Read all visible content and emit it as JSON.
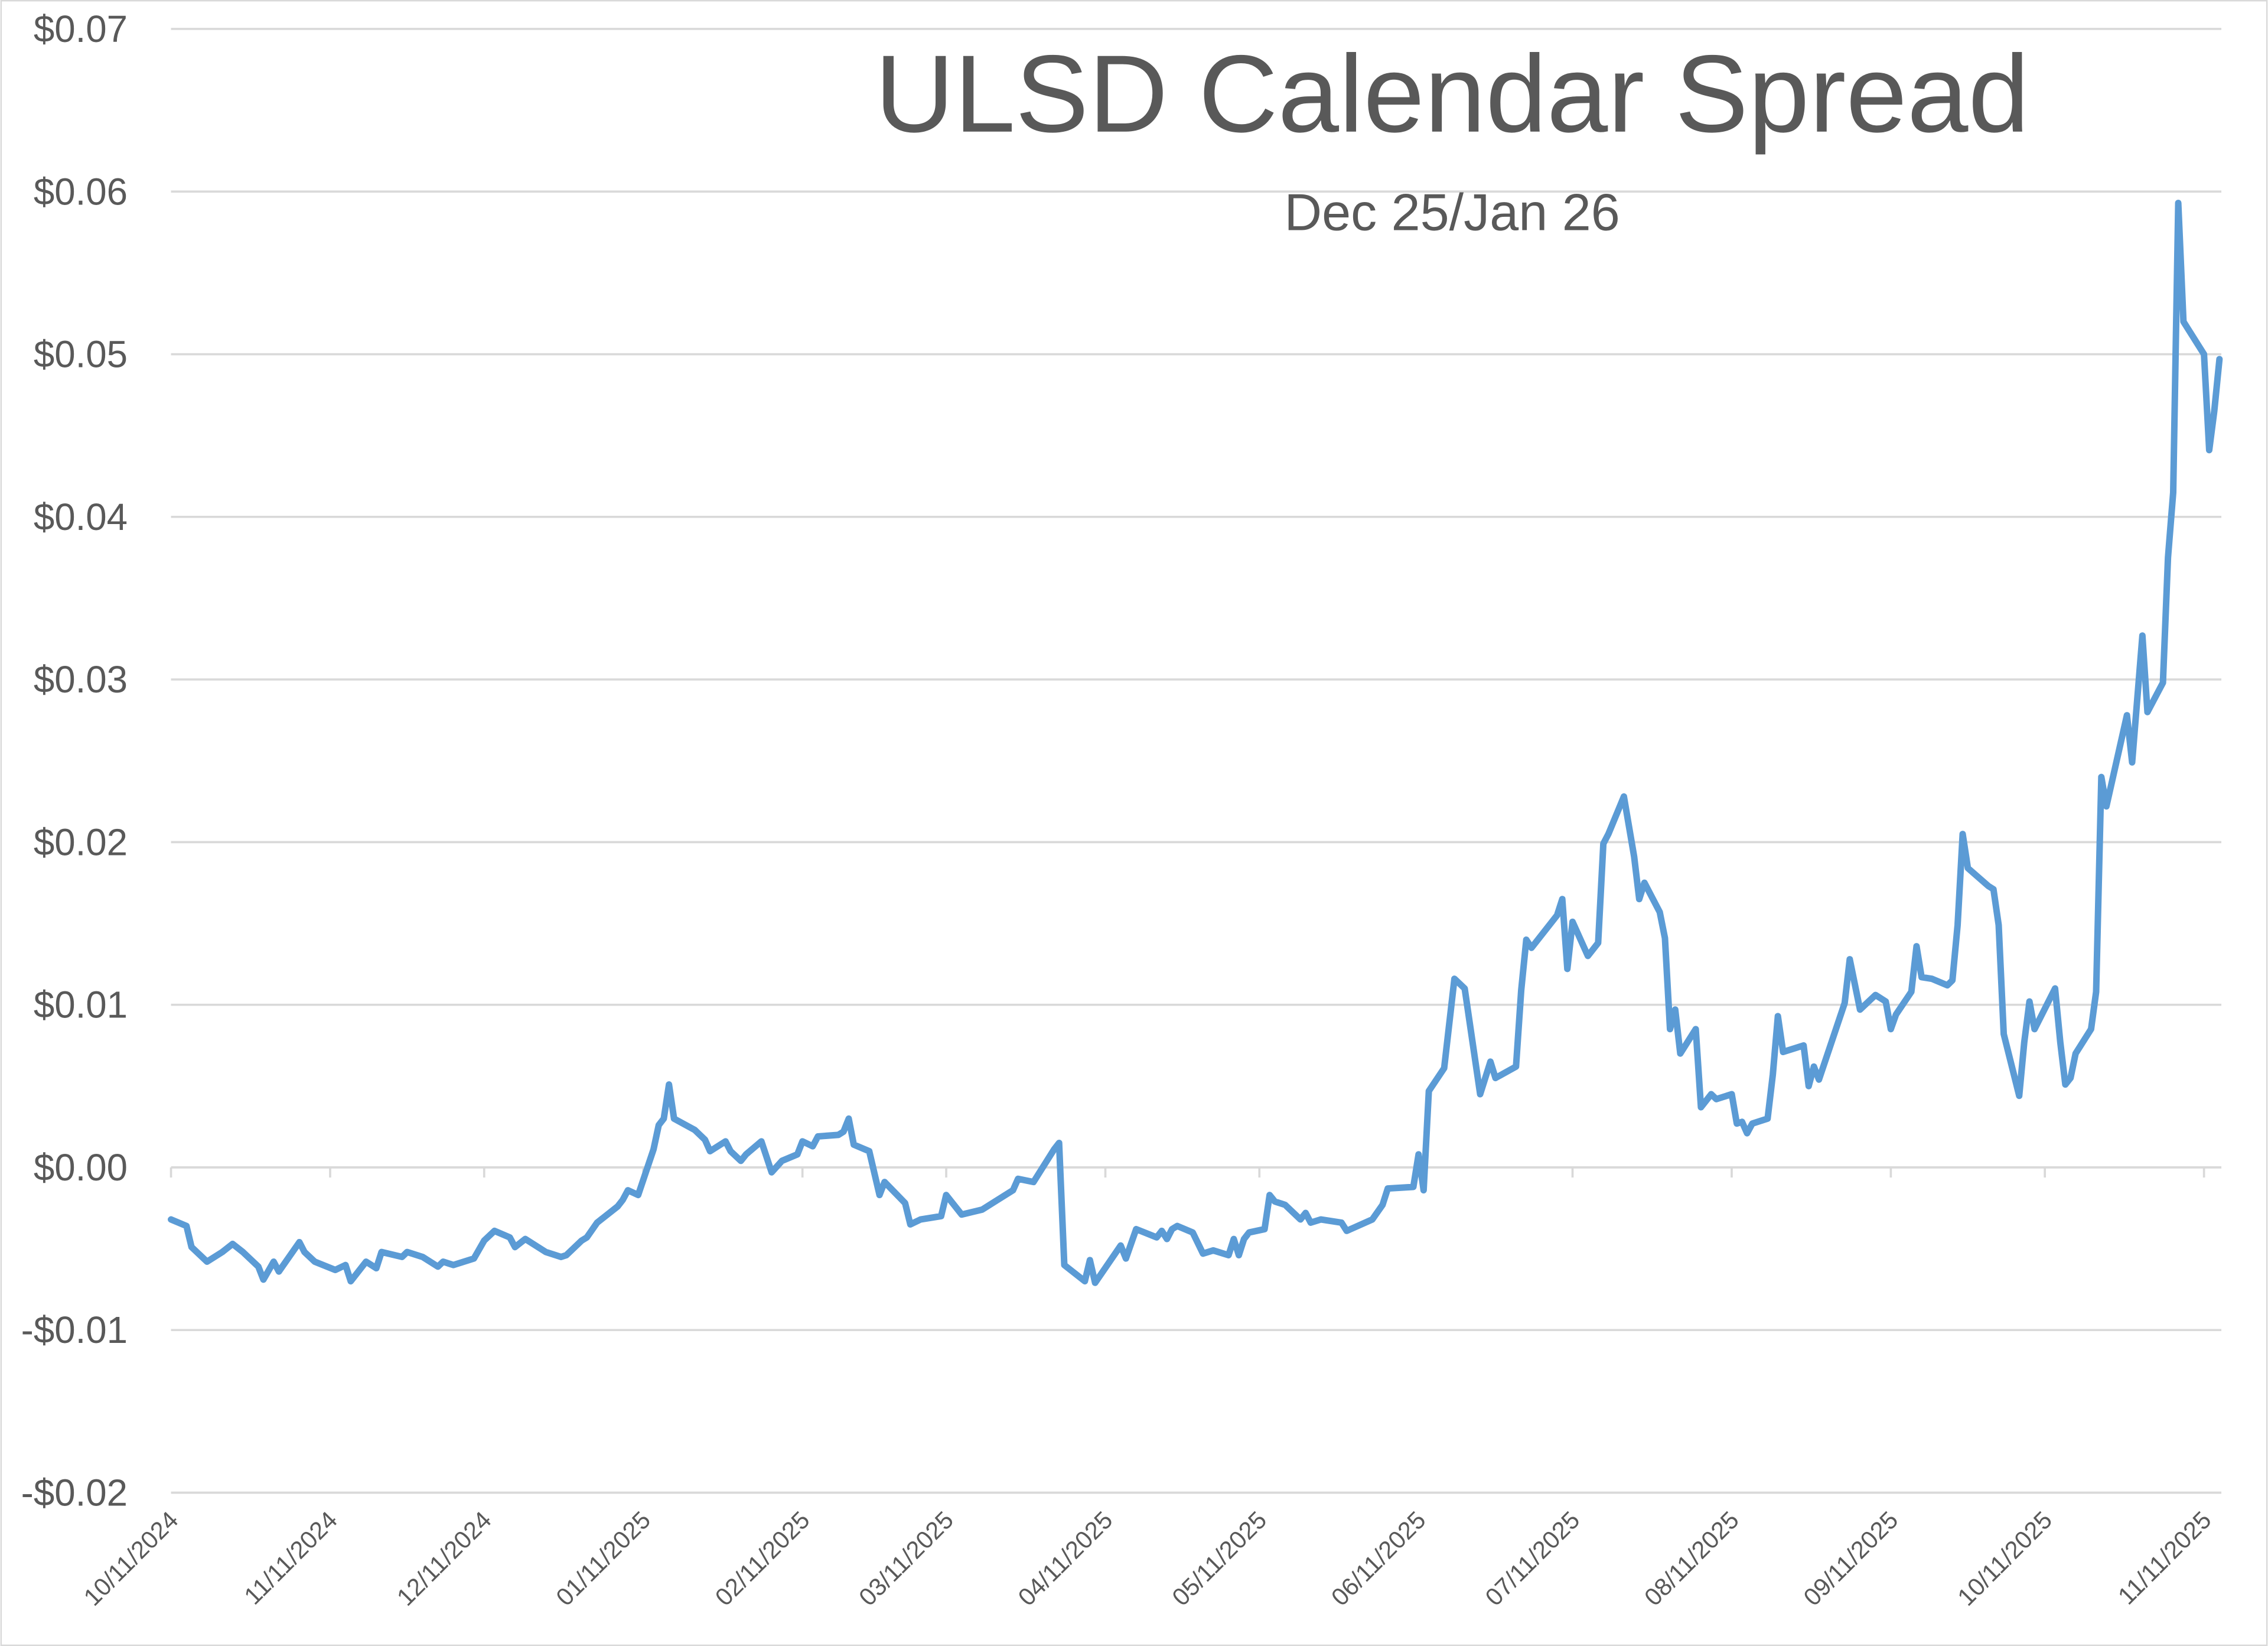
{
  "chart_data": {
    "type": "line",
    "title": "ULSD Calendar Spread",
    "subtitle": "Dec 25/Jan 26",
    "xlabel": "",
    "ylabel": "",
    "ylim": [
      -0.02,
      0.07
    ],
    "xlim": [
      "2024-10-11",
      "2025-11-11"
    ],
    "y_ticks": [
      -0.02,
      -0.01,
      0.0,
      0.01,
      0.02,
      0.03,
      0.04,
      0.05,
      0.06,
      0.07
    ],
    "y_tick_labels": [
      "-$0.02",
      "-$0.01",
      "$0.00",
      "$0.01",
      "$0.02",
      "$0.03",
      "$0.04",
      "$0.05",
      "$0.06",
      "$0.07"
    ],
    "x_ticks": [
      "2024-10-11",
      "2024-11-11",
      "2024-12-11",
      "2025-01-11",
      "2025-02-11",
      "2025-03-11",
      "2025-04-11",
      "2025-05-11",
      "2025-06-11",
      "2025-07-11",
      "2025-08-11",
      "2025-09-11",
      "2025-10-11",
      "2025-11-11"
    ],
    "x_tick_labels": [
      "10/11/2024",
      "11/11/2024",
      "12/11/2024",
      "01/11/2025",
      "02/11/2025",
      "03/11/2025",
      "04/11/2025",
      "05/11/2025",
      "06/11/2025",
      "07/11/2025",
      "08/11/2025",
      "09/11/2025",
      "10/11/2025",
      "11/11/2025"
    ],
    "grid": true,
    "legend": "none",
    "line_color": "#5b9bd5",
    "series": [
      {
        "x": [
          "2024-10-11",
          "2024-10-14",
          "2024-10-15",
          "2024-10-18",
          "2024-10-21",
          "2024-10-23",
          "2024-10-25",
          "2024-10-28",
          "2024-10-29",
          "2024-10-31",
          "2024-11-01",
          "2024-11-05",
          "2024-11-06",
          "2024-11-08",
          "2024-11-12",
          "2024-11-14",
          "2024-11-15",
          "2024-11-18",
          "2024-11-20",
          "2024-11-21",
          "2024-11-25",
          "2024-11-26",
          "2024-11-29",
          "2024-12-02",
          "2024-12-03",
          "2024-12-05",
          "2024-12-09",
          "2024-12-11",
          "2024-12-13",
          "2024-12-16",
          "2024-12-17",
          "2024-12-19",
          "2024-12-23",
          "2024-12-26",
          "2024-12-27",
          "2024-12-30",
          "2024-12-31",
          "2025-01-02",
          "2025-01-06",
          "2025-01-07",
          "2025-01-08",
          "2025-01-10",
          "2025-01-13",
          "2025-01-14",
          "2025-01-15",
          "2025-01-16",
          "2025-01-17",
          "2025-01-21",
          "2025-01-23",
          "2025-01-24",
          "2025-01-27",
          "2025-01-28",
          "2025-01-30",
          "2025-01-31",
          "2025-02-03",
          "2025-02-05",
          "2025-02-07",
          "2025-02-10",
          "2025-02-11",
          "2025-02-13",
          "2025-02-14",
          "2025-02-18",
          "2025-02-19",
          "2025-02-20",
          "2025-02-21",
          "2025-02-24",
          "2025-02-26",
          "2025-02-27",
          "2025-03-03",
          "2025-03-04",
          "2025-03-06",
          "2025-03-10",
          "2025-03-11",
          "2025-03-14",
          "2025-03-18",
          "2025-03-21",
          "2025-03-24",
          "2025-03-25",
          "2025-03-28",
          "2025-04-01",
          "2025-04-02",
          "2025-04-03",
          "2025-04-07",
          "2025-04-08",
          "2025-04-09",
          "2025-04-14",
          "2025-04-15",
          "2025-04-17",
          "2025-04-21",
          "2025-04-22",
          "2025-04-23",
          "2025-04-24",
          "2025-04-25",
          "2025-04-28",
          "2025-04-30",
          "2025-05-02",
          "2025-05-05",
          "2025-05-06",
          "2025-05-07",
          "2025-05-08",
          "2025-05-09",
          "2025-05-12",
          "2025-05-13",
          "2025-05-14",
          "2025-05-16",
          "2025-05-19",
          "2025-05-20",
          "2025-05-21",
          "2025-05-23",
          "2025-05-27",
          "2025-05-28",
          "2025-06-02",
          "2025-06-04",
          "2025-06-05",
          "2025-06-10",
          "2025-06-11",
          "2025-06-12",
          "2025-06-13",
          "2025-06-16",
          "2025-06-18",
          "2025-06-20",
          "2025-06-23",
          "2025-06-25",
          "2025-06-26",
          "2025-06-30",
          "2025-07-01",
          "2025-07-02",
          "2025-07-03",
          "2025-07-08",
          "2025-07-09",
          "2025-07-10",
          "2025-07-11",
          "2025-07-14",
          "2025-07-16",
          "2025-07-17",
          "2025-07-18",
          "2025-07-21",
          "2025-07-23",
          "2025-07-24",
          "2025-07-25",
          "2025-07-28",
          "2025-07-29",
          "2025-07-30",
          "2025-07-31",
          "2025-08-01",
          "2025-08-04",
          "2025-08-05",
          "2025-08-07",
          "2025-08-08",
          "2025-08-11",
          "2025-08-12",
          "2025-08-13",
          "2025-08-14",
          "2025-08-15",
          "2025-08-18",
          "2025-08-19",
          "2025-08-20",
          "2025-08-21",
          "2025-08-25",
          "2025-08-26",
          "2025-08-27",
          "2025-08-28",
          "2025-09-02",
          "2025-09-03",
          "2025-09-05",
          "2025-09-08",
          "2025-09-10",
          "2025-09-11",
          "2025-09-12",
          "2025-09-15",
          "2025-09-16",
          "2025-09-17",
          "2025-09-19",
          "2025-09-22",
          "2025-09-23",
          "2025-09-24",
          "2025-09-25",
          "2025-09-26",
          "2025-09-30",
          "2025-10-01",
          "2025-10-02",
          "2025-10-03",
          "2025-10-06",
          "2025-10-07",
          "2025-10-08",
          "2025-10-09",
          "2025-10-13",
          "2025-10-14",
          "2025-10-15",
          "2025-10-16",
          "2025-10-17",
          "2025-10-20",
          "2025-10-21",
          "2025-10-22",
          "2025-10-23",
          "2025-10-27",
          "2025-10-28",
          "2025-10-30",
          "2025-10-31",
          "2025-11-03",
          "2025-11-04",
          "2025-11-05",
          "2025-11-06",
          "2025-11-07",
          "2025-11-11",
          "2025-11-12",
          "2025-11-13",
          "2025-11-14"
        ],
        "y": [
          -0.0032,
          -0.0036,
          -0.0049,
          -0.0058,
          -0.0052,
          -0.0047,
          -0.0052,
          -0.0061,
          -0.0069,
          -0.0058,
          -0.0064,
          -0.0046,
          -0.0052,
          -0.0058,
          -0.0063,
          -0.006,
          -0.007,
          -0.0058,
          -0.0062,
          -0.0052,
          -0.0055,
          -0.0052,
          -0.0055,
          -0.0061,
          -0.0058,
          -0.006,
          -0.0056,
          -0.0045,
          -0.0039,
          -0.0043,
          -0.0049,
          -0.0044,
          -0.0052,
          -0.0055,
          -0.0054,
          -0.0045,
          -0.0043,
          -0.0034,
          -0.0024,
          -0.002,
          -0.0014,
          -0.0017,
          0.0011,
          0.0026,
          0.003,
          0.0051,
          0.003,
          0.0023,
          0.0017,
          0.001,
          0.0016,
          0.001,
          0.0004,
          0.0008,
          0.0016,
          -0.0003,
          0.0004,
          0.0008,
          0.0016,
          0.0013,
          0.0019,
          0.002,
          0.0022,
          0.003,
          0.0014,
          0.001,
          -0.0017,
          -0.0009,
          -0.0022,
          -0.0035,
          -0.0032,
          -0.003,
          -0.0017,
          -0.0029,
          -0.0026,
          -0.002,
          -0.0014,
          -0.0007,
          -0.0009,
          0.0011,
          0.0015,
          -0.006,
          -0.007,
          -0.0057,
          -0.0071,
          -0.0048,
          -0.0056,
          -0.0038,
          -0.0043,
          -0.0039,
          -0.0044,
          -0.0038,
          -0.0036,
          -0.004,
          -0.0053,
          -0.0051,
          -0.0054,
          -0.0044,
          -0.0054,
          -0.0044,
          -0.004,
          -0.0038,
          -0.0017,
          -0.0021,
          -0.0023,
          -0.0032,
          -0.0028,
          -0.0034,
          -0.0032,
          -0.0034,
          -0.0039,
          -0.0032,
          -0.0023,
          -0.0013,
          -0.0012,
          0.0008,
          -0.0014,
          0.0047,
          0.0061,
          0.0116,
          0.011,
          0.0045,
          0.0065,
          0.0055,
          0.0062,
          0.0109,
          0.014,
          0.0135,
          0.0155,
          0.0165,
          0.0122,
          0.0151,
          0.013,
          0.0138,
          0.0199,
          0.0205,
          0.0228,
          0.0191,
          0.0165,
          0.0175,
          0.0157,
          0.0141,
          0.0085,
          0.0097,
          0.007,
          0.0085,
          0.0037,
          0.0045,
          0.0042,
          0.0045,
          0.0027,
          0.0028,
          0.0021,
          0.0027,
          0.003,
          0.0057,
          0.0093,
          0.0071,
          0.0075,
          0.005,
          0.0062,
          0.0054,
          0.0101,
          0.0128,
          0.0097,
          0.0106,
          0.0102,
          0.0085,
          0.0094,
          0.0108,
          0.0136,
          0.0117,
          0.0116,
          0.0112,
          0.0115,
          0.0149,
          0.0205,
          0.0184,
          0.0173,
          0.0171,
          0.0149,
          0.0082,
          0.0044,
          0.0077,
          0.0102,
          0.0085,
          0.011,
          0.0077,
          0.0051,
          0.0055,
          0.007,
          0.0085,
          0.0108,
          0.024,
          0.0222,
          0.0278,
          0.0249,
          0.0327,
          0.028,
          0.0298,
          0.0375,
          0.0415,
          0.0593,
          0.052,
          0.05,
          0.0441,
          0.0465,
          0.0497
        ]
      }
    ]
  }
}
